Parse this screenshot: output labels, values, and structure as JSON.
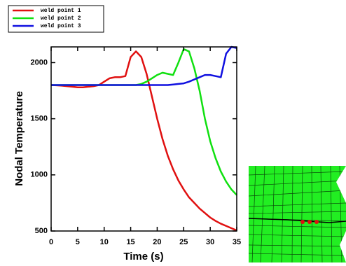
{
  "chart_data": {
    "type": "line",
    "x_label": "Time (s)",
    "y_label": "Nodal Temperature",
    "x": [
      0,
      1,
      2,
      3,
      4,
      5,
      6,
      7,
      8,
      9,
      10,
      11,
      12,
      13,
      14,
      15,
      16,
      17,
      18,
      19,
      20,
      21,
      22,
      23,
      24,
      25,
      26,
      27,
      28,
      29,
      30,
      31,
      32,
      33,
      34,
      35
    ],
    "series": [
      {
        "name": "weld point 1",
        "color": "#e01010",
        "values": [
          1800,
          1798,
          1795,
          1790,
          1785,
          1780,
          1780,
          1785,
          1790,
          1800,
          1830,
          1860,
          1870,
          1870,
          1880,
          2050,
          2100,
          2050,
          1900,
          1700,
          1500,
          1320,
          1170,
          1050,
          950,
          870,
          800,
          750,
          700,
          660,
          620,
          590,
          565,
          545,
          525,
          505
        ]
      },
      {
        "name": "weld point 2",
        "color": "#10e010",
        "values": [
          1800,
          1800,
          1800,
          1800,
          1800,
          1800,
          1800,
          1800,
          1800,
          1800,
          1800,
          1800,
          1800,
          1800,
          1800,
          1800,
          1800,
          1810,
          1830,
          1860,
          1890,
          1910,
          1900,
          1890,
          2000,
          2120,
          2100,
          1950,
          1750,
          1500,
          1300,
          1150,
          1030,
          940,
          870,
          820
        ]
      },
      {
        "name": "weld point 3",
        "color": "#1010e0",
        "values": [
          1800,
          1800,
          1800,
          1800,
          1800,
          1800,
          1800,
          1800,
          1800,
          1800,
          1800,
          1800,
          1800,
          1800,
          1800,
          1800,
          1800,
          1800,
          1800,
          1800,
          1800,
          1800,
          1800,
          1805,
          1810,
          1815,
          1830,
          1850,
          1870,
          1890,
          1890,
          1880,
          1870,
          2080,
          2140,
          2130
        ]
      }
    ],
    "xlim": [
      0,
      35
    ],
    "xticks": [
      0,
      5,
      10,
      15,
      20,
      25,
      30,
      35
    ],
    "ylim": [
      500,
      2140
    ],
    "yticks": [
      500,
      1000,
      1500,
      2000
    ]
  }
}
